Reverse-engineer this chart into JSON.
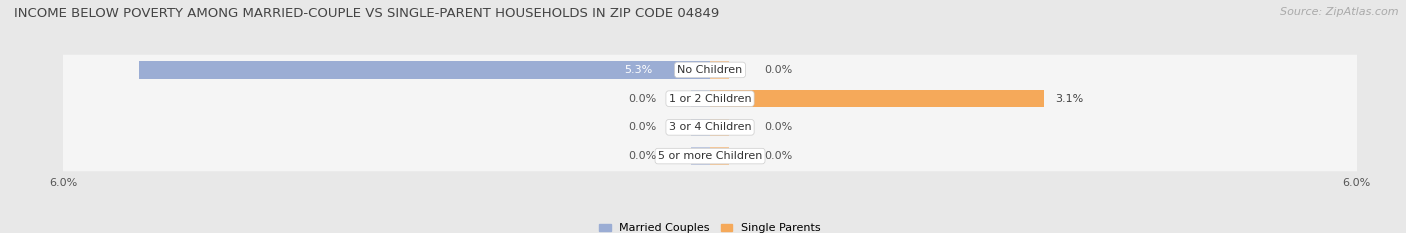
{
  "title": "INCOME BELOW POVERTY AMONG MARRIED-COUPLE VS SINGLE-PARENT HOUSEHOLDS IN ZIP CODE 04849",
  "source": "Source: ZipAtlas.com",
  "categories": [
    "No Children",
    "1 or 2 Children",
    "3 or 4 Children",
    "5 or more Children"
  ],
  "married_values": [
    5.3,
    0.0,
    0.0,
    0.0
  ],
  "single_values": [
    0.0,
    3.1,
    0.0,
    0.0
  ],
  "xlim": 6.0,
  "married_color": "#9badd4",
  "single_color": "#f5a95a",
  "married_label": "Married Couples",
  "single_label": "Single Parents",
  "background_color": "#e8e8e8",
  "row_bg_color": "#f5f5f5",
  "row_alt_bg": "#ececec",
  "title_fontsize": 9.5,
  "label_fontsize": 8.0,
  "tick_fontsize": 8.0,
  "source_fontsize": 8.0,
  "bar_height": 0.6
}
